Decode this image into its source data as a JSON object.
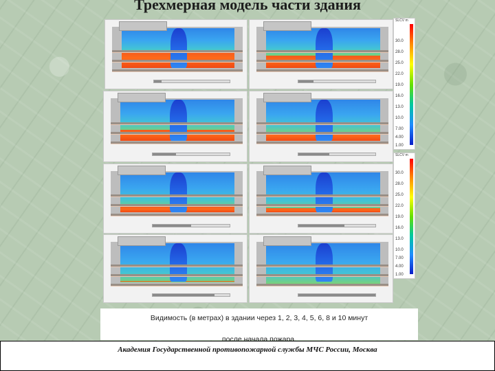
{
  "slide": {
    "title": "Трехмерная модель части здания",
    "caption_line1": "Видимость (в метрах) в здании через 1, 2, 3, 4, 5, 6, 8 и 10 минут",
    "caption_line2": "после начала пожара.",
    "footer": "Академия Государственной противопожарной службы МЧС России, Москва"
  },
  "frames": [
    {
      "time_index": 1,
      "progress": 0.1
    },
    {
      "time_index": 2,
      "progress": 0.2
    },
    {
      "time_index": 3,
      "progress": 0.3
    },
    {
      "time_index": 4,
      "progress": 0.4
    },
    {
      "time_index": 5,
      "progress": 0.5
    },
    {
      "time_index": 6,
      "progress": 0.6
    },
    {
      "time_index": 8,
      "progress": 0.8
    },
    {
      "time_index": 10,
      "progress": 1.0
    }
  ],
  "legend": {
    "header": "SLCV m",
    "values": [
      "30.0",
      "28.0",
      "25.0",
      "22.0",
      "19.0",
      "16.0",
      "13.0",
      "10.0",
      "7.00",
      "4.00",
      "1.00"
    ]
  },
  "colors": {
    "visibility_low": "#ff6a1a",
    "visibility_high": "#2366e6",
    "background": "#b7cbb3"
  }
}
